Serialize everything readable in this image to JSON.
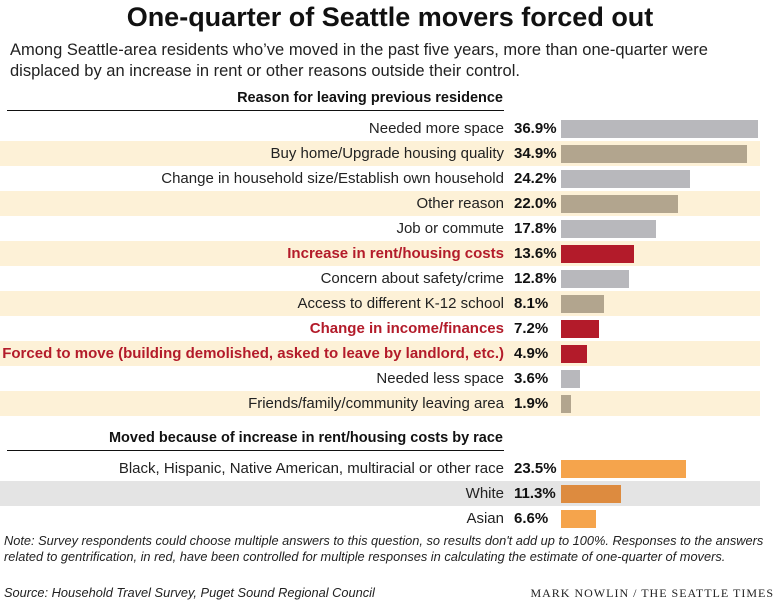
{
  "title": "One-quarter of Seattle movers forced out",
  "subtitle": "Among Seattle-area residents who’ve moved in the past five years, more than one-quarter were displaced by an increase in rent or other reasons outside their control.",
  "note": "Note: Survey respondents could choose multiple answers to this question, so results don't add up to 100%. Responses to the answers related to gentrification, in red, have been controlled for multiple responses in calculating the estimate of one-quarter of movers.",
  "source": "Source: Household Travel Survey, Puget Sound Regional Council",
  "credit": "MARK NOWLIN / THE SEATTLE TIMES",
  "colors": {
    "gray_bar": "#b8b8bc",
    "tan_bar": "#b2a58e",
    "red": "#b31b2a",
    "orange": "#f5a44c",
    "orange_dark": "#dd8b3f",
    "cream_band": "#fdf1d7",
    "gray_band": "#e4e4e4"
  },
  "chart_data": [
    {
      "type": "bar",
      "orientation": "horizontal",
      "title": "Reason for leaving previous residence",
      "categories": [
        "Needed more space",
        "Buy home/Upgrade housing quality",
        "Change in household size/Establish own household",
        "Other reason",
        "Job or commute",
        "Increase in rent/housing costs",
        "Concern about safety/crime",
        "Access to different K-12 school",
        "Change in income/finances",
        "Forced to move (building demolished, asked to leave by landlord, etc.)",
        "Needed less space",
        "Friends/family/community leaving area"
      ],
      "values": [
        36.9,
        34.9,
        24.2,
        22.0,
        17.8,
        13.6,
        12.8,
        8.1,
        7.2,
        4.9,
        3.6,
        1.9
      ],
      "value_labels": [
        "36.9%",
        "34.9%",
        "24.2%",
        "22.0%",
        "17.8%",
        "13.6%",
        "12.8%",
        "8.1%",
        "7.2%",
        "4.9%",
        "3.6%",
        "1.9%"
      ],
      "highlight": [
        false,
        false,
        false,
        false,
        false,
        true,
        false,
        false,
        true,
        true,
        false,
        false
      ],
      "xlim": [
        0,
        36.9
      ]
    },
    {
      "type": "bar",
      "orientation": "horizontal",
      "title": "Moved because of increase in rent/housing costs by race",
      "categories": [
        "Black, Hispanic, Native American, multiracial or other race",
        "White",
        "Asian"
      ],
      "values": [
        23.5,
        11.3,
        6.6
      ],
      "value_labels": [
        "23.5%",
        "11.3%",
        "6.6%"
      ],
      "xlim": [
        0,
        36.9
      ]
    }
  ]
}
